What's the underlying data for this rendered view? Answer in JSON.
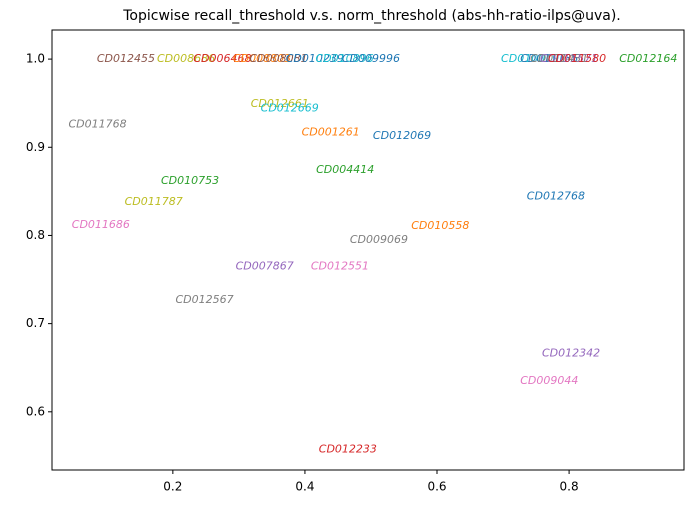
{
  "chart_data": {
    "type": "scatter",
    "title": "Topicwise recall_threshold v.s. norm_threshold (abs-hh-ratio-ilps@uva).",
    "xlim": [
      0.017,
      0.974
    ],
    "ylim": [
      0.534,
      1.033
    ],
    "xticks": [
      0.2,
      0.4,
      0.6,
      0.8
    ],
    "yticks": [
      0.6,
      0.7,
      0.8,
      0.9,
      {
        "value": 1,
        "label": "1.0"
      }
    ],
    "points": [
      {
        "label": "CD012455",
        "x": 0.129,
        "y": 1.0,
        "color": "#8c564b"
      },
      {
        "label": "CD008686",
        "x": 0.22,
        "y": 1.0,
        "color": "#bcbd22"
      },
      {
        "label": "CD006468",
        "x": 0.275,
        "y": 1.0,
        "color": "#d62728"
      },
      {
        "label": "CD008803",
        "x": 0.335,
        "y": 1.0,
        "color": "#ff7f0e"
      },
      {
        "label": "CD008081",
        "x": 0.36,
        "y": 1.0,
        "color": "#8c564b"
      },
      {
        "label": "CD010239",
        "x": 0.415,
        "y": 1.0,
        "color": "#1f77b4"
      },
      {
        "label": "CD010896",
        "x": 0.46,
        "y": 1.0,
        "color": "#17becf"
      },
      {
        "label": "CD009996",
        "x": 0.5,
        "y": 1.0,
        "color": "#1f77b4"
      },
      {
        "label": "CD010019",
        "x": 0.741,
        "y": 1.0,
        "color": "#17becf"
      },
      {
        "label": "CD011135",
        "x": 0.77,
        "y": 1.0,
        "color": "#1f77b4"
      },
      {
        "label": "CD011431",
        "x": 0.785,
        "y": 1.0,
        "color": "#7f7f7f"
      },
      {
        "label": "CD011571",
        "x": 0.8,
        "y": 1.0,
        "color": "#9467bd"
      },
      {
        "label": "CD011580",
        "x": 0.812,
        "y": 1.0,
        "color": "#d62728"
      },
      {
        "label": "CD012164",
        "x": 0.92,
        "y": 1.0,
        "color": "#2ca02c"
      },
      {
        "label": "CD011768",
        "x": 0.086,
        "y": 0.926,
        "color": "#7f7f7f"
      },
      {
        "label": "CD012661",
        "x": 0.362,
        "y": 0.949,
        "color": "#bcbd22"
      },
      {
        "label": "CD012669",
        "x": 0.377,
        "y": 0.944,
        "color": "#17becf"
      },
      {
        "label": "CD001261",
        "x": 0.439,
        "y": 0.917,
        "color": "#ff7f0e"
      },
      {
        "label": "CD012069",
        "x": 0.547,
        "y": 0.913,
        "color": "#1f77b4"
      },
      {
        "label": "CD004414",
        "x": 0.461,
        "y": 0.874,
        "color": "#2ca02c"
      },
      {
        "label": "CD010753",
        "x": 0.226,
        "y": 0.862,
        "color": "#2ca02c"
      },
      {
        "label": "CD011787",
        "x": 0.171,
        "y": 0.838,
        "color": "#bcbd22"
      },
      {
        "label": "CD012768",
        "x": 0.78,
        "y": 0.844,
        "color": "#1f77b4"
      },
      {
        "label": "CD011686",
        "x": 0.091,
        "y": 0.812,
        "color": "#e377c2"
      },
      {
        "label": "CD010558",
        "x": 0.605,
        "y": 0.811,
        "color": "#ff7f0e"
      },
      {
        "label": "CD009069",
        "x": 0.512,
        "y": 0.795,
        "color": "#7f7f7f"
      },
      {
        "label": "CD007867",
        "x": 0.339,
        "y": 0.765,
        "color": "#9467bd"
      },
      {
        "label": "CD012551",
        "x": 0.453,
        "y": 0.765,
        "color": "#e377c2"
      },
      {
        "label": "CD012567",
        "x": 0.248,
        "y": 0.727,
        "color": "#7f7f7f"
      },
      {
        "label": "CD012342",
        "x": 0.803,
        "y": 0.666,
        "color": "#9467bd"
      },
      {
        "label": "CD009044",
        "x": 0.77,
        "y": 0.635,
        "color": "#e377c2"
      },
      {
        "label": "CD012233",
        "x": 0.465,
        "y": 0.557,
        "color": "#d62728"
      }
    ]
  }
}
